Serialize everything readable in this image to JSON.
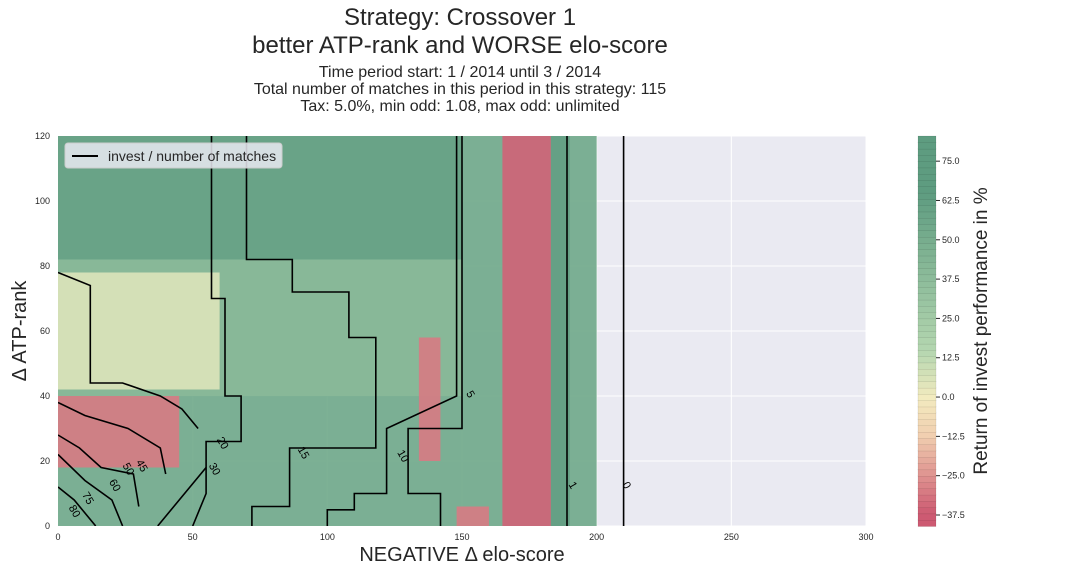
{
  "titles": {
    "line1": "Strategy: Crossover 1",
    "line2": "better ATP-rank and WORSE elo-score",
    "sub1": "Time period start: 1 / 2014 until 3 / 2014",
    "sub2": "Total number of matches in this period in this strategy: 115",
    "sub3": "Tax: 5.0%, min odd: 1.08, max odd: unlimited"
  },
  "chart_data": {
    "type": "heatmap",
    "xlabel": "NEGATIVE Δ elo-score",
    "ylabel": "Δ ATP-rank",
    "xlim": [
      0,
      300
    ],
    "ylim": [
      0,
      120
    ],
    "xticks": [
      0,
      50,
      100,
      150,
      200,
      250,
      300
    ],
    "yticks": [
      0,
      20,
      40,
      60,
      80,
      100,
      120
    ],
    "grid": true,
    "legend": {
      "placement": "top-left",
      "entry": "invest / number of matches",
      "color": "#000000"
    },
    "colorbar": {
      "label": "Return of invest performance in %",
      "ticks": [
        "75.0",
        "62.5",
        "50.0",
        "37.5",
        "25.0",
        "12.5",
        "0.0",
        "−12.5",
        "−25.0",
        "−37.5"
      ],
      "tick_values": [
        75,
        62.5,
        50,
        37.5,
        25,
        12.5,
        0,
        -12.5,
        -25,
        -37.5
      ],
      "range": [
        -41,
        83
      ],
      "colors": {
        "negative": "#cd5a72",
        "neutral": "#f2ebbf",
        "positive": "#5e9c80"
      }
    },
    "data_extent_x": [
      0,
      200
    ],
    "regions": [
      {
        "label": "background",
        "x": [
          0,
          200
        ],
        "y": [
          0,
          120
        ],
        "value": 55
      },
      {
        "label": "upper left block",
        "x": [
          0,
          150
        ],
        "y": [
          82,
          120
        ],
        "value": 60
      },
      {
        "label": "mid band",
        "x": [
          0,
          150
        ],
        "y": [
          40,
          82
        ],
        "value": 40
      },
      {
        "label": "low-left mixed",
        "x": [
          0,
          60
        ],
        "y": [
          42,
          78
        ],
        "value": 5
      },
      {
        "label": "low-left negative",
        "x": [
          0,
          45
        ],
        "y": [
          18,
          40
        ],
        "value": -30
      },
      {
        "label": "vertical strip",
        "x": [
          134,
          142
        ],
        "y": [
          20,
          58
        ],
        "value": -30
      },
      {
        "label": "wide negative column",
        "x": [
          165,
          183
        ],
        "y": [
          0,
          120
        ],
        "value": -35
      },
      {
        "label": "right green column",
        "x": [
          183,
          190
        ],
        "y": [
          0,
          120
        ],
        "value": 62
      },
      {
        "label": "bottom negative spot",
        "x": [
          148,
          160
        ],
        "y": [
          0,
          6
        ],
        "value": -30
      }
    ],
    "contour_labels": [
      {
        "text": "80",
        "x": 5,
        "y": 4
      },
      {
        "text": "75",
        "x": 10,
        "y": 8
      },
      {
        "text": "60",
        "x": 20,
        "y": 12
      },
      {
        "text": "50",
        "x": 25,
        "y": 17
      },
      {
        "text": "45",
        "x": 30,
        "y": 18
      },
      {
        "text": "30",
        "x": 57,
        "y": 17
      },
      {
        "text": "20",
        "x": 60,
        "y": 25
      },
      {
        "text": "15",
        "x": 90,
        "y": 22
      },
      {
        "text": "10",
        "x": 127,
        "y": 21
      },
      {
        "text": "5",
        "x": 152,
        "y": 40
      },
      {
        "text": "1",
        "x": 190,
        "y": 12
      },
      {
        "text": "0",
        "x": 210,
        "y": 12
      }
    ],
    "contours": [
      {
        "label": "0",
        "points": [
          [
            210,
            0
          ],
          [
            210,
            120
          ]
        ]
      },
      {
        "label": "1",
        "points": [
          [
            189,
            0
          ],
          [
            189,
            120
          ]
        ]
      },
      {
        "label": "5",
        "points": [
          [
            142,
            0
          ],
          [
            142,
            10
          ],
          [
            130,
            10
          ],
          [
            130,
            30
          ],
          [
            150,
            30
          ],
          [
            150,
            120
          ]
        ]
      },
      {
        "label": "10",
        "points": [
          [
            100,
            0
          ],
          [
            100,
            5
          ],
          [
            110,
            5
          ],
          [
            110,
            10
          ],
          [
            122,
            10
          ],
          [
            122,
            30
          ],
          [
            148,
            40
          ],
          [
            148,
            120
          ]
        ]
      },
      {
        "label": "15",
        "points": [
          [
            72,
            0
          ],
          [
            72,
            6
          ],
          [
            86,
            6
          ],
          [
            86,
            24
          ],
          [
            118,
            24
          ],
          [
            118,
            58
          ],
          [
            108,
            58
          ],
          [
            108,
            72
          ],
          [
            87,
            72
          ],
          [
            87,
            82
          ],
          [
            70,
            82
          ],
          [
            70,
            120
          ]
        ]
      },
      {
        "label": "20",
        "points": [
          [
            50,
            0
          ],
          [
            55,
            10
          ],
          [
            55,
            26
          ],
          [
            68,
            26
          ],
          [
            68,
            40
          ],
          [
            62,
            40
          ],
          [
            62,
            70
          ],
          [
            57,
            70
          ],
          [
            57,
            120
          ]
        ]
      },
      {
        "label": "30",
        "points": [
          [
            37,
            0
          ],
          [
            45,
            8
          ],
          [
            55,
            18
          ]
        ]
      },
      {
        "label": "45",
        "points": [
          [
            0,
            78
          ],
          [
            12,
            74
          ],
          [
            12,
            44
          ],
          [
            24,
            44
          ],
          [
            38,
            40
          ],
          [
            46,
            36
          ],
          [
            52,
            30
          ]
        ]
      },
      {
        "label": "50",
        "points": [
          [
            0,
            38
          ],
          [
            10,
            34
          ],
          [
            26,
            30
          ],
          [
            38,
            24
          ],
          [
            40,
            16
          ]
        ]
      },
      {
        "label": "60",
        "points": [
          [
            0,
            28
          ],
          [
            8,
            24
          ],
          [
            16,
            18
          ],
          [
            28,
            16
          ],
          [
            30,
            6
          ]
        ]
      },
      {
        "label": "75",
        "points": [
          [
            0,
            22
          ],
          [
            10,
            14
          ],
          [
            20,
            8
          ],
          [
            24,
            0
          ]
        ]
      },
      {
        "label": "80",
        "points": [
          [
            0,
            12
          ],
          [
            6,
            8
          ],
          [
            14,
            0
          ]
        ]
      }
    ]
  }
}
